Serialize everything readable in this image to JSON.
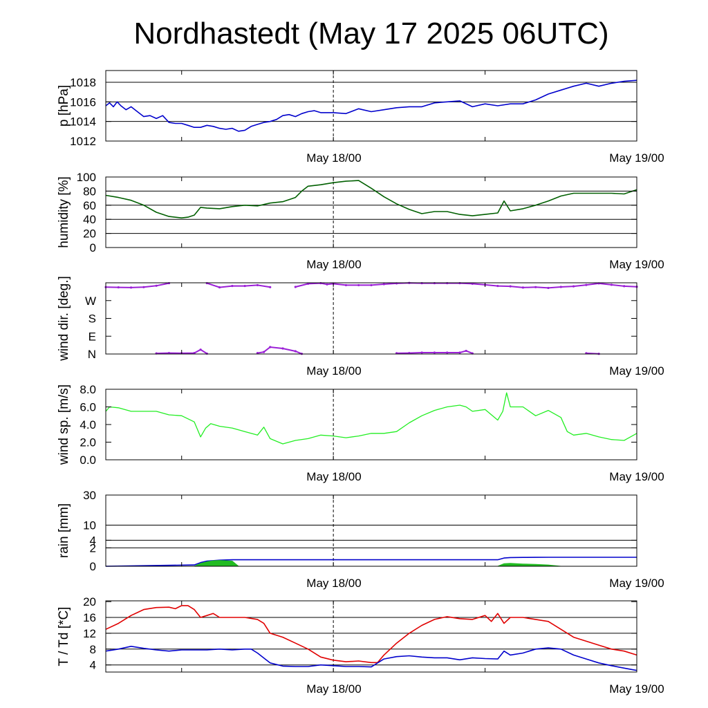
{
  "title": "Nordhastedt (May 17 2025 06UTC)",
  "colors": {
    "pressure": "#0000cc",
    "humidity": "#005f00",
    "wind_dir": "#9a1fd6",
    "wind_speed": "#22ee22",
    "rain_accum": "#0000cc",
    "rain_rate": "#22bb22",
    "temperature": "#e00000",
    "dewpoint": "#0000cc"
  },
  "chart_data": [
    {
      "id": "pressure",
      "type": "line",
      "ylabel": "p [hPa]",
      "ylim": [
        1012,
        1019.2
      ],
      "yticks": [
        "1012",
        "1014",
        "1016",
        "1018"
      ],
      "ytick_values": [
        1012,
        1014,
        1016,
        1018
      ],
      "grid_values": [
        1014,
        1016,
        1018
      ],
      "x_labels": [
        "May 18/00",
        "May 19/00"
      ],
      "series": [
        {
          "color_key": "pressure",
          "x": [
            0,
            0.3,
            0.6,
            0.9,
            1.2,
            1.6,
            2,
            2.5,
            3,
            3.5,
            4,
            4.5,
            5,
            5.5,
            6,
            6.5,
            7,
            7.5,
            8,
            8.5,
            9,
            9.5,
            10,
            10.5,
            11,
            11.5,
            12,
            12.5,
            13,
            13.5,
            14,
            14.5,
            15,
            15.5,
            16,
            16.5,
            17,
            17.5,
            18,
            19,
            20,
            21,
            22,
            23,
            24,
            25,
            26,
            27,
            28,
            29,
            30,
            31,
            32,
            33,
            34,
            35,
            36,
            37,
            38,
            39,
            40,
            41,
            42
          ],
          "y": [
            1015.6,
            1015.9,
            1015.5,
            1016.0,
            1015.6,
            1015.2,
            1015.5,
            1015.0,
            1014.5,
            1014.6,
            1014.3,
            1014.6,
            1013.9,
            1013.8,
            1013.8,
            1013.6,
            1013.4,
            1013.4,
            1013.6,
            1013.5,
            1013.3,
            1013.2,
            1013.3,
            1013.0,
            1013.1,
            1013.5,
            1013.7,
            1013.9,
            1014.0,
            1014.2,
            1014.6,
            1014.7,
            1014.5,
            1014.8,
            1015.0,
            1015.1,
            1014.9,
            1014.9,
            1014.9,
            1014.8,
            1015.3,
            1015.0,
            1015.2,
            1015.4,
            1015.5,
            1015.5,
            1015.9,
            1016.0,
            1016.1,
            1015.5,
            1015.8,
            1015.6,
            1015.8,
            1015.8,
            1016.2,
            1016.8,
            1017.2,
            1017.6,
            1017.9,
            1017.6,
            1017.9,
            1018.1,
            1018.2
          ]
        }
      ]
    },
    {
      "id": "humidity",
      "type": "line",
      "ylabel": "humidity [%]",
      "ylim": [
        0,
        100
      ],
      "yticks": [
        "0",
        "20",
        "40",
        "60",
        "80",
        "100"
      ],
      "ytick_values": [
        0,
        20,
        40,
        60,
        80,
        100
      ],
      "grid_values": [
        20,
        40,
        60,
        80
      ],
      "x_labels": [
        "May 18/00",
        "May 19/00"
      ],
      "series": [
        {
          "color_key": "humidity",
          "x": [
            0,
            1,
            2,
            3,
            4,
            5,
            6,
            6.5,
            7,
            7.5,
            8,
            9,
            10,
            11,
            12,
            13,
            14,
            15,
            15.5,
            16,
            17,
            18,
            19,
            20,
            21,
            22,
            23,
            24,
            25,
            26,
            27,
            28,
            29,
            30,
            31,
            31.5,
            32,
            33,
            34,
            35,
            36,
            37,
            38,
            39,
            40,
            41,
            42
          ],
          "y": [
            74,
            71,
            67,
            60,
            50,
            44,
            42,
            43,
            46,
            57,
            56,
            55,
            58,
            60,
            59,
            63,
            65,
            71,
            80,
            87,
            89,
            92,
            94,
            95,
            84,
            72,
            62,
            54,
            48,
            51,
            51,
            47,
            45,
            47,
            49,
            66,
            52,
            55,
            60,
            66,
            73,
            77,
            77,
            77,
            77,
            76,
            82
          ]
        }
      ]
    },
    {
      "id": "wind_dir",
      "type": "scatter",
      "ylabel": "wind dir. [deg.]",
      "ylim": [
        0,
        360
      ],
      "yticks": [
        "N",
        "E",
        "S",
        "W"
      ],
      "ytick_values": [
        0,
        90,
        180,
        270
      ],
      "grid_values": [],
      "x_labels": [
        "May 18/00",
        "May 19/00"
      ],
      "series": [
        {
          "color_key": "wind_dir",
          "x": [
            0,
            1,
            2,
            3,
            4,
            5,
            8,
            9,
            10,
            11,
            12,
            13,
            15,
            16,
            17,
            17.5,
            18,
            19,
            20,
            21,
            22,
            23,
            24,
            25,
            26,
            27,
            28,
            29,
            30,
            31,
            32,
            33,
            34,
            35,
            36,
            37,
            38,
            39,
            40,
            41,
            42
          ],
          "y": [
            338,
            337,
            336,
            338,
            345,
            358,
            358,
            337,
            344,
            344,
            348,
            338,
            339,
            355,
            358,
            352,
            355,
            348,
            348,
            348,
            353,
            357,
            359,
            358,
            358,
            358,
            358,
            355,
            350,
            344,
            342,
            336,
            338,
            334,
            339,
            342,
            349,
            357,
            350,
            343,
            340
          ]
        },
        {
          "color_key": "wind_dir",
          "x": [
            4,
            5,
            6,
            7,
            7.5,
            8,
            12,
            12.5,
            13,
            14,
            15,
            15.5,
            23,
            24,
            25,
            26,
            27,
            28,
            28.5,
            29,
            38,
            39
          ],
          "y": [
            3,
            5,
            4,
            5,
            22,
            2,
            5,
            10,
            35,
            28,
            14,
            1,
            4,
            5,
            7,
            7,
            7,
            7,
            16,
            3,
            4,
            1
          ]
        }
      ]
    },
    {
      "id": "wind_speed",
      "type": "line",
      "ylabel": "wind sp. [m/s]",
      "ylim": [
        0,
        8
      ],
      "yticks": [
        "0.0",
        "2.0",
        "4.0",
        "6.0",
        "8.0"
      ],
      "ytick_values": [
        0,
        2,
        4,
        6,
        8
      ],
      "grid_values": [],
      "x_labels": [
        "May 18/00",
        "May 19/00"
      ],
      "series": [
        {
          "color_key": "wind_speed",
          "x": [
            0,
            0.3,
            1,
            2,
            3,
            4,
            5,
            6,
            7,
            7.5,
            7.9,
            8.3,
            9,
            10,
            11,
            12,
            12.5,
            13,
            14,
            15,
            16,
            17,
            18,
            19,
            20,
            21,
            22,
            23,
            24,
            25,
            26,
            27,
            28,
            28.5,
            29,
            30,
            31,
            31.4,
            31.7,
            32,
            33,
            34,
            35,
            36,
            36.5,
            37,
            38,
            39,
            40,
            41,
            42
          ],
          "y": [
            5.5,
            6.0,
            5.9,
            5.5,
            5.5,
            5.5,
            5.1,
            5.0,
            4.3,
            2.6,
            3.6,
            4.1,
            3.8,
            3.6,
            3.2,
            2.8,
            3.7,
            2.4,
            1.8,
            2.2,
            2.4,
            2.8,
            2.7,
            2.5,
            2.7,
            3.0,
            3.0,
            3.2,
            4.2,
            5.0,
            5.6,
            6.0,
            6.2,
            6.0,
            5.5,
            5.7,
            4.5,
            5.5,
            7.6,
            6.0,
            6.0,
            5.0,
            5.6,
            4.8,
            3.2,
            2.8,
            3.0,
            2.6,
            2.3,
            2.2,
            3.0
          ]
        }
      ]
    },
    {
      "id": "rain",
      "type": "area",
      "ylabel": "rain [mm]",
      "ylim": [
        0,
        30
      ],
      "yticks": [
        "0",
        "2",
        "4",
        "10",
        "30"
      ],
      "ytick_values": [
        0,
        2,
        4,
        10,
        30
      ],
      "grid_values": [
        2,
        4,
        10,
        30
      ],
      "scale": "sqrt",
      "x_labels": [
        "May 18/00",
        "May 19/00"
      ],
      "series": [
        {
          "color_key": "rain_accum",
          "kind": "line",
          "x": [
            0,
            7,
            7.5,
            8,
            9,
            10,
            11,
            12,
            13,
            14,
            15,
            16,
            17,
            18,
            19,
            20,
            21,
            22,
            23,
            24,
            25,
            26,
            27,
            28,
            29,
            30,
            31,
            31.5,
            32,
            33,
            34,
            35,
            36,
            37,
            38,
            39,
            40,
            41,
            42
          ],
          "y": [
            0,
            0.01,
            0.08,
            0.16,
            0.22,
            0.25,
            0.25,
            0.25,
            0.25,
            0.25,
            0.25,
            0.25,
            0.25,
            0.25,
            0.25,
            0.25,
            0.25,
            0.25,
            0.25,
            0.25,
            0.25,
            0.25,
            0.25,
            0.25,
            0.25,
            0.25,
            0.25,
            0.4,
            0.45,
            0.46,
            0.47,
            0.48,
            0.48,
            0.48,
            0.48,
            0.48,
            0.48,
            0.48,
            0.48
          ]
        },
        {
          "color_key": "rain_rate",
          "kind": "area",
          "x": [
            7,
            7.5,
            8,
            8.5,
            9,
            9.5,
            10,
            10.5
          ],
          "y": [
            0,
            0.05,
            0.12,
            0.18,
            0.2,
            0.18,
            0.16,
            0
          ]
        },
        {
          "color_key": "rain_rate",
          "kind": "area",
          "x": [
            31,
            31.5,
            32,
            33,
            34,
            35,
            36
          ],
          "y": [
            0,
            0.04,
            0.05,
            0.03,
            0.02,
            0.01,
            0
          ]
        }
      ]
    },
    {
      "id": "temperature",
      "type": "line",
      "ylabel": "T / Td [*C]",
      "ylim": [
        2.2,
        20.2
      ],
      "yticks": [
        "4",
        "8",
        "12",
        "16",
        "20"
      ],
      "ytick_values": [
        4,
        8,
        12,
        16,
        20
      ],
      "grid_values": [
        4,
        8,
        12,
        16
      ],
      "x_labels": [
        "May 18/00",
        "May 19/00"
      ],
      "series": [
        {
          "color_key": "temperature",
          "x": [
            0,
            1,
            2,
            3,
            4,
            5,
            5.5,
            6,
            6.5,
            7,
            7.5,
            8,
            8.5,
            9,
            10,
            11,
            12,
            12.5,
            13,
            14,
            15,
            16,
            17,
            18,
            19,
            20,
            21,
            21.5,
            22,
            23,
            24,
            25,
            26,
            27,
            28,
            29,
            30,
            30.5,
            31,
            31.5,
            32,
            33,
            34,
            35,
            36,
            37,
            38,
            39,
            40,
            41,
            42
          ],
          "y": [
            13,
            14.5,
            16.5,
            18,
            18.5,
            18.6,
            18.2,
            19,
            19,
            18,
            16,
            16.5,
            17,
            16,
            16,
            16,
            15.5,
            14.5,
            12,
            11,
            9.5,
            8,
            6,
            5.2,
            4.8,
            5,
            4.6,
            4.6,
            6.5,
            9.5,
            12,
            14,
            15.5,
            16.2,
            15.7,
            15.5,
            16.5,
            15,
            17,
            14.5,
            16,
            16,
            15.5,
            15,
            13,
            11,
            10,
            9,
            8,
            7.5,
            6.5
          ]
        },
        {
          "color_key": "dewpoint",
          "x": [
            0,
            1,
            2,
            3,
            4,
            5,
            6,
            7,
            8,
            9,
            10,
            11,
            11.5,
            12,
            13,
            14,
            15,
            16,
            17,
            18,
            19,
            20,
            21,
            22,
            23,
            24,
            25,
            26,
            27,
            28,
            29,
            30,
            31,
            31.5,
            32,
            33,
            34,
            35,
            36,
            37,
            38,
            39,
            40,
            41,
            42
          ],
          "y": [
            7.5,
            8,
            8.7,
            8.2,
            7.8,
            7.5,
            7.8,
            7.8,
            7.8,
            8,
            7.8,
            8,
            8,
            7,
            4.5,
            3.7,
            3.6,
            3.6,
            4,
            3.8,
            3.6,
            3.6,
            3.5,
            5.5,
            6.1,
            6.3,
            6,
            5.8,
            5.8,
            5.3,
            5.8,
            5.6,
            5.5,
            7.5,
            6.5,
            7,
            8,
            8.3,
            8,
            6.5,
            5.5,
            4.5,
            3.8,
            3.2,
            2.6
          ]
        }
      ]
    }
  ]
}
